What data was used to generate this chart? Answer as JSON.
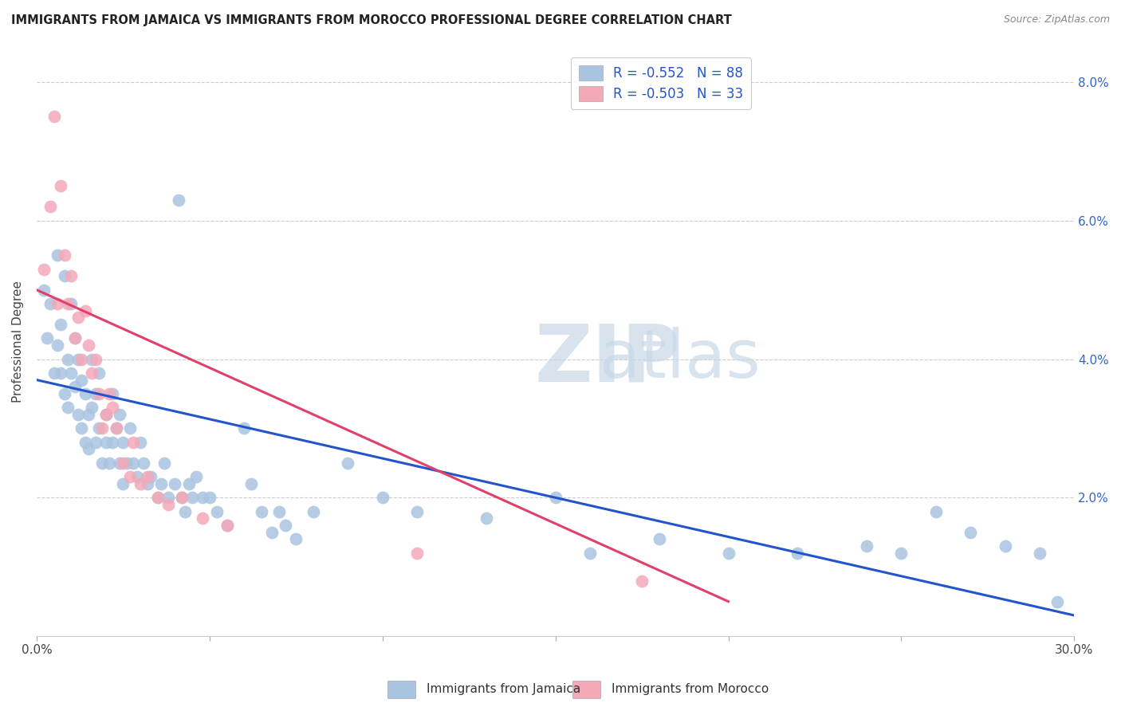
{
  "title": "IMMIGRANTS FROM JAMAICA VS IMMIGRANTS FROM MOROCCO PROFESSIONAL DEGREE CORRELATION CHART",
  "source": "Source: ZipAtlas.com",
  "ylabel": "Professional Degree",
  "x_min": 0.0,
  "x_max": 0.3,
  "y_min": 0.0,
  "y_max": 0.085,
  "x_ticks": [
    0.0,
    0.05,
    0.1,
    0.15,
    0.2,
    0.25,
    0.3
  ],
  "x_tick_labels": [
    "0.0%",
    "",
    "",
    "",
    "",
    "",
    "30.0%"
  ],
  "y_ticks": [
    0.0,
    0.02,
    0.04,
    0.06,
    0.08
  ],
  "y_tick_labels_right": [
    "",
    "2.0%",
    "4.0%",
    "6.0%",
    "8.0%"
  ],
  "jamaica_color": "#a8c4e0",
  "morocco_color": "#f4a8b8",
  "jamaica_line_color": "#2255cc",
  "morocco_line_color": "#e0406a",
  "jamaica_R": -0.552,
  "jamaica_N": 88,
  "morocco_R": -0.503,
  "morocco_N": 33,
  "legend_jamaica": "Immigrants from Jamaica",
  "legend_morocco": "Immigrants from Morocco",
  "jamaica_scatter_x": [
    0.002,
    0.003,
    0.004,
    0.005,
    0.006,
    0.006,
    0.007,
    0.007,
    0.008,
    0.008,
    0.009,
    0.009,
    0.01,
    0.01,
    0.011,
    0.011,
    0.012,
    0.012,
    0.013,
    0.013,
    0.014,
    0.014,
    0.015,
    0.015,
    0.016,
    0.016,
    0.017,
    0.017,
    0.018,
    0.018,
    0.019,
    0.02,
    0.02,
    0.021,
    0.022,
    0.022,
    0.023,
    0.024,
    0.024,
    0.025,
    0.025,
    0.026,
    0.027,
    0.028,
    0.029,
    0.03,
    0.031,
    0.032,
    0.033,
    0.035,
    0.036,
    0.037,
    0.038,
    0.04,
    0.041,
    0.042,
    0.043,
    0.044,
    0.045,
    0.046,
    0.048,
    0.05,
    0.052,
    0.055,
    0.06,
    0.062,
    0.065,
    0.068,
    0.07,
    0.072,
    0.075,
    0.08,
    0.09,
    0.1,
    0.11,
    0.13,
    0.15,
    0.16,
    0.18,
    0.2,
    0.22,
    0.24,
    0.25,
    0.26,
    0.27,
    0.28,
    0.29,
    0.295
  ],
  "jamaica_scatter_y": [
    0.05,
    0.043,
    0.048,
    0.038,
    0.042,
    0.055,
    0.038,
    0.045,
    0.035,
    0.052,
    0.04,
    0.033,
    0.038,
    0.048,
    0.036,
    0.043,
    0.032,
    0.04,
    0.03,
    0.037,
    0.028,
    0.035,
    0.032,
    0.027,
    0.04,
    0.033,
    0.035,
    0.028,
    0.03,
    0.038,
    0.025,
    0.032,
    0.028,
    0.025,
    0.035,
    0.028,
    0.03,
    0.025,
    0.032,
    0.028,
    0.022,
    0.025,
    0.03,
    0.025,
    0.023,
    0.028,
    0.025,
    0.022,
    0.023,
    0.02,
    0.022,
    0.025,
    0.02,
    0.022,
    0.063,
    0.02,
    0.018,
    0.022,
    0.02,
    0.023,
    0.02,
    0.02,
    0.018,
    0.016,
    0.03,
    0.022,
    0.018,
    0.015,
    0.018,
    0.016,
    0.014,
    0.018,
    0.025,
    0.02,
    0.018,
    0.017,
    0.02,
    0.012,
    0.014,
    0.012,
    0.012,
    0.013,
    0.012,
    0.018,
    0.015,
    0.013,
    0.012,
    0.005
  ],
  "morocco_scatter_x": [
    0.002,
    0.004,
    0.005,
    0.006,
    0.007,
    0.008,
    0.009,
    0.01,
    0.011,
    0.012,
    0.013,
    0.014,
    0.015,
    0.016,
    0.017,
    0.018,
    0.019,
    0.02,
    0.021,
    0.022,
    0.023,
    0.025,
    0.027,
    0.028,
    0.03,
    0.032,
    0.035,
    0.038,
    0.042,
    0.048,
    0.055,
    0.11,
    0.175
  ],
  "morocco_scatter_y": [
    0.053,
    0.062,
    0.075,
    0.048,
    0.065,
    0.055,
    0.048,
    0.052,
    0.043,
    0.046,
    0.04,
    0.047,
    0.042,
    0.038,
    0.04,
    0.035,
    0.03,
    0.032,
    0.035,
    0.033,
    0.03,
    0.025,
    0.023,
    0.028,
    0.022,
    0.023,
    0.02,
    0.019,
    0.02,
    0.017,
    0.016,
    0.012,
    0.008
  ],
  "jamaica_line_x": [
    0.0,
    0.3
  ],
  "jamaica_line_y": [
    0.037,
    0.003
  ],
  "morocco_line_x": [
    0.0,
    0.2
  ],
  "morocco_line_y": [
    0.05,
    0.005
  ]
}
